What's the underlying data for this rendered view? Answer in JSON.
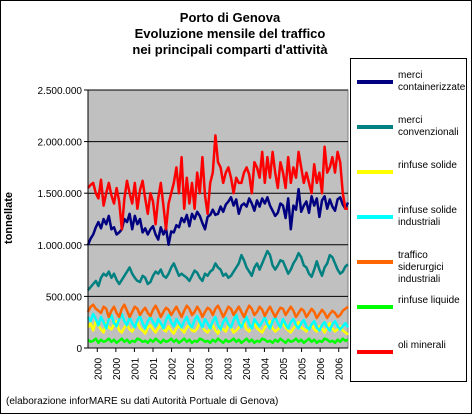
{
  "title": [
    "Porto di Genova",
    "Evoluzione mensile del traffico",
    "nei principali comparti d'attività"
  ],
  "footnote": "(elaborazione inforMARE su dati Autorità Portuale di Genova)",
  "colors": {
    "plot_background": "#c0c0c0",
    "gridline": "#000000"
  },
  "chart_data": {
    "type": "line",
    "ylabel": "tonnellate",
    "xlabel": "",
    "ylim": [
      0,
      2500000
    ],
    "yticks": [
      0,
      500000,
      1000000,
      1500000,
      2000000,
      2500000
    ],
    "ytick_labels": [
      "0",
      "500.000",
      "1.000.000",
      "1.500.000",
      "2.000.000",
      "2.500.000"
    ],
    "xtick_labels": [
      "2000",
      "2000",
      "2001",
      "2001",
      "2002",
      "2002",
      "2003",
      "2003",
      "2004",
      "2004",
      "2005",
      "2005",
      "2006",
      "2006"
    ],
    "x_period": "monthly, Jan 2000 – Jul 2006 (values estimated from the plot)",
    "grid": "horizontal",
    "legend_position": "right",
    "series": [
      {
        "name": "merci containerizzate",
        "color": "#000080",
        "values": [
          1000000,
          1060000,
          1100000,
          1170000,
          1220000,
          1160000,
          1250000,
          1200000,
          1280000,
          1150000,
          1170000,
          1100000,
          1120000,
          1150000,
          1250000,
          1220000,
          1300000,
          1150000,
          1280000,
          1200000,
          1250000,
          1120000,
          1160000,
          1100000,
          1150000,
          1180000,
          1100000,
          1050000,
          1170000,
          1100000,
          1160000,
          1000000,
          1130000,
          1120000,
          1190000,
          1170000,
          1260000,
          1220000,
          1290000,
          1180000,
          1300000,
          1250000,
          1320000,
          1280000,
          1210000,
          1150000,
          1270000,
          1290000,
          1340000,
          1290000,
          1300000,
          1370000,
          1320000,
          1390000,
          1420000,
          1460000,
          1380000,
          1440000,
          1300000,
          1380000,
          1400000,
          1370000,
          1450000,
          1400000,
          1330000,
          1430000,
          1370000,
          1450000,
          1400000,
          1460000,
          1380000,
          1330000,
          1280000,
          1310000,
          1400000,
          1380000,
          1260000,
          1450000,
          1150000,
          1380000,
          1340000,
          1540000,
          1320000,
          1380000,
          1420000,
          1310000,
          1470000,
          1380000,
          1450000,
          1270000,
          1430000,
          1470000,
          1350000,
          1440000,
          1370000,
          1330000,
          1440000,
          1460000,
          1390000,
          1350000,
          1410000
        ]
      },
      {
        "name": "merci convenzionali",
        "color": "#008080",
        "values": [
          560000,
          590000,
          620000,
          650000,
          600000,
          680000,
          720000,
          700000,
          740000,
          680000,
          720000,
          660000,
          620000,
          660000,
          700000,
          740000,
          780000,
          720000,
          680000,
          650000,
          640000,
          700000,
          680000,
          620000,
          640000,
          700000,
          740000,
          720000,
          760000,
          700000,
          680000,
          720000,
          780000,
          820000,
          760000,
          700000,
          720000,
          700000,
          680000,
          650000,
          700000,
          750000,
          730000,
          680000,
          650000,
          720000,
          700000,
          740000,
          760000,
          820000,
          780000,
          760000,
          700000,
          720000,
          680000,
          700000,
          740000,
          780000,
          820000,
          900000,
          850000,
          780000,
          740000,
          700000,
          780000,
          820000,
          760000,
          820000,
          880000,
          940000,
          900000,
          800000,
          760000,
          800000,
          850000,
          840000,
          780000,
          720000,
          760000,
          820000,
          860000,
          920000,
          880000,
          800000,
          780000,
          720000,
          690000,
          760000,
          840000,
          760000,
          700000,
          780000,
          820000,
          900000,
          880000,
          820000,
          760000,
          720000,
          740000,
          790000,
          810000
        ]
      },
      {
        "name": "rinfuse solide",
        "color": "#ffff00",
        "values": [
          200000,
          240000,
          170000,
          260000,
          220000,
          180000,
          150000,
          240000,
          200000,
          180000,
          230000,
          260000,
          170000,
          150000,
          200000,
          230000,
          180000,
          160000,
          210000,
          250000,
          190000,
          170000,
          140000,
          200000,
          220000,
          180000,
          150000,
          190000,
          230000,
          180000,
          160000,
          210000,
          170000,
          140000,
          190000,
          220000,
          180000,
          150000,
          200000,
          230000,
          170000,
          160000,
          190000,
          250000,
          200000,
          170000,
          150000,
          190000,
          220000,
          170000,
          140000,
          210000,
          180000,
          160000,
          230000,
          200000,
          150000,
          170000,
          200000,
          230000,
          250000,
          180000,
          160000,
          210000,
          240000,
          190000,
          170000,
          150000,
          200000,
          220000,
          260000,
          190000,
          160000,
          180000,
          210000,
          240000,
          200000,
          170000,
          150000,
          190000,
          220000,
          250000,
          200000,
          180000,
          160000,
          200000,
          230000,
          180000,
          160000,
          210000,
          190000,
          150000,
          200000,
          240000,
          190000,
          160000,
          180000,
          210000,
          170000,
          150000,
          130000
        ]
      },
      {
        "name": "rinfuse solide industriali",
        "color": "#00ffff",
        "values": [
          300000,
          260000,
          330000,
          280000,
          220000,
          300000,
          250000,
          190000,
          280000,
          320000,
          240000,
          210000,
          280000,
          330000,
          260000,
          220000,
          300000,
          240000,
          200000,
          270000,
          310000,
          240000,
          190000,
          260000,
          300000,
          250000,
          210000,
          280000,
          240000,
          190000,
          270000,
          320000,
          250000,
          210000,
          280000,
          240000,
          200000,
          260000,
          300000,
          230000,
          200000,
          270000,
          310000,
          250000,
          200000,
          280000,
          240000,
          190000,
          260000,
          300000,
          220000,
          180000,
          250000,
          290000,
          230000,
          200000,
          270000,
          320000,
          240000,
          200000,
          260000,
          300000,
          230000,
          190000,
          280000,
          240000,
          210000,
          250000,
          300000,
          230000,
          190000,
          260000,
          300000,
          240000,
          200000,
          280000,
          230000,
          190000,
          250000,
          280000,
          220000,
          190000,
          240000,
          270000,
          210000,
          180000,
          230000,
          260000,
          200000,
          170000,
          220000,
          250000,
          200000,
          170000,
          230000,
          260000,
          210000,
          180000,
          210000,
          240000,
          200000
        ]
      },
      {
        "name": "traffico siderurgici industriali",
        "color": "#ff6600",
        "values": [
          350000,
          400000,
          420000,
          380000,
          360000,
          340000,
          400000,
          380000,
          300000,
          360000,
          400000,
          340000,
          300000,
          380000,
          420000,
          360000,
          300000,
          350000,
          400000,
          380000,
          320000,
          360000,
          390000,
          340000,
          310000,
          370000,
          410000,
          360000,
          300000,
          350000,
          390000,
          370000,
          320000,
          360000,
          400000,
          350000,
          300000,
          360000,
          410000,
          380000,
          320000,
          350000,
          400000,
          360000,
          300000,
          350000,
          390000,
          370000,
          320000,
          380000,
          410000,
          360000,
          300000,
          350000,
          400000,
          380000,
          320000,
          360000,
          400000,
          350000,
          300000,
          360000,
          410000,
          380000,
          320000,
          350000,
          400000,
          370000,
          310000,
          360000,
          400000,
          350000,
          300000,
          350000,
          390000,
          380000,
          320000,
          360000,
          400000,
          360000,
          300000,
          340000,
          380000,
          360000,
          300000,
          340000,
          380000,
          350000,
          290000,
          330000,
          370000,
          340000,
          290000,
          330000,
          360000,
          340000,
          300000,
          320000,
          360000,
          380000,
          400000
        ]
      },
      {
        "name": "rinfuse liquide",
        "color": "#00ff00",
        "values": [
          80000,
          60000,
          70000,
          90000,
          50000,
          80000,
          60000,
          70000,
          90000,
          60000,
          80000,
          50000,
          70000,
          90000,
          60000,
          80000,
          50000,
          70000,
          60000,
          90000,
          80000,
          60000,
          70000,
          50000,
          80000,
          60000,
          90000,
          70000,
          50000,
          80000,
          60000,
          70000,
          90000,
          60000,
          80000,
          50000,
          70000,
          90000,
          60000,
          80000,
          50000,
          70000,
          60000,
          90000,
          80000,
          60000,
          70000,
          50000,
          80000,
          60000,
          90000,
          70000,
          50000,
          80000,
          60000,
          70000,
          90000,
          60000,
          80000,
          50000,
          70000,
          90000,
          60000,
          80000,
          50000,
          70000,
          60000,
          90000,
          80000,
          60000,
          70000,
          50000,
          80000,
          60000,
          90000,
          70000,
          50000,
          80000,
          60000,
          70000,
          90000,
          60000,
          80000,
          50000,
          70000,
          90000,
          60000,
          80000,
          50000,
          70000,
          60000,
          90000,
          80000,
          60000,
          70000,
          50000,
          80000,
          60000,
          90000,
          70000,
          80000
        ]
      },
      {
        "name": "oli minerali",
        "color": "#ff0000",
        "values": [
          1550000,
          1580000,
          1600000,
          1500000,
          1450000,
          1630000,
          1380000,
          1500000,
          1600000,
          1480000,
          1400000,
          1550000,
          1420000,
          1150000,
          1450000,
          1620000,
          1500000,
          1400000,
          1600000,
          1350000,
          1530000,
          1620000,
          1450000,
          1300000,
          1500000,
          1420000,
          1200000,
          1450000,
          1600000,
          1380000,
          1150000,
          1400000,
          1500000,
          1600000,
          1750000,
          1500000,
          1850000,
          1350000,
          1650000,
          1400000,
          1600000,
          1350000,
          1700000,
          1500000,
          1850000,
          1480000,
          1300000,
          1600000,
          1700000,
          2060000,
          1800000,
          1750000,
          1600000,
          1700000,
          1750000,
          1650000,
          1500000,
          1650000,
          1600000,
          1600000,
          1700000,
          1750000,
          1680000,
          1500000,
          1800000,
          1750000,
          1650000,
          1900000,
          1600000,
          1850000,
          1650000,
          1900000,
          1700000,
          1550000,
          1800000,
          1700000,
          1550000,
          1850000,
          1600000,
          1750000,
          1650000,
          1900000,
          1750000,
          1600000,
          1700000,
          1600000,
          1500000,
          1780000,
          1600000,
          1700000,
          1500000,
          1950000,
          1700000,
          1750000,
          1850000,
          1700000,
          1900000,
          1800000,
          1500000,
          1350000,
          1350000
        ]
      }
    ]
  }
}
